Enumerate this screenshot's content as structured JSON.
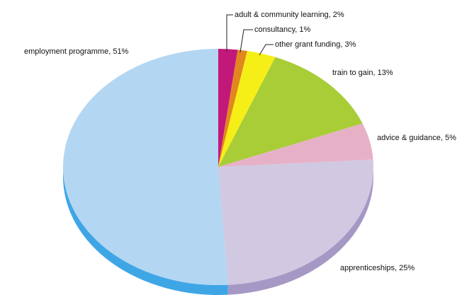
{
  "chart_data": {
    "type": "pie",
    "title": "",
    "start_angle_deg": 0,
    "direction": "clockwise",
    "style": "3d-tilted",
    "slices": [
      {
        "label": "adult & community learning",
        "value": 2,
        "display": "adult & community learning, 2%",
        "color": "#c2187a",
        "side_color": "#8f0f58"
      },
      {
        "label": "consultancy",
        "value": 1,
        "display": "consultancy, 1%",
        "color": "#e2871f",
        "side_color": "#a85f12"
      },
      {
        "label": "other grant funding",
        "value": 3,
        "display": "other grant funding, 3%",
        "color": "#f6ef17",
        "side_color": "#c2bb0c"
      },
      {
        "label": "train to gain",
        "value": 13,
        "display": "train to gain, 13%",
        "color": "#a8cd37",
        "side_color": "#7e9c24"
      },
      {
        "label": "advice & guidance",
        "value": 5,
        "display": "advice & guidance, 5%",
        "color": "#e6b1c6",
        "side_color": "#bf8aa0"
      },
      {
        "label": "apprenticeships",
        "value": 25,
        "display": "apprenticeships, 25%",
        "color": "#d1c8e1",
        "side_color": "#a698c5"
      },
      {
        "label": "employment programme",
        "value": 51,
        "display": "employment programme, 51%",
        "color": "#b3d6f2",
        "side_color": "#3fa6e6"
      }
    ]
  }
}
